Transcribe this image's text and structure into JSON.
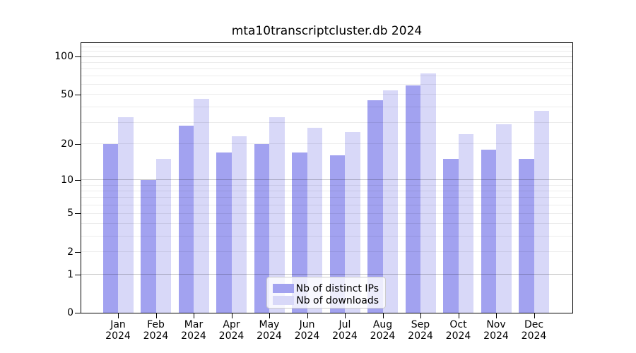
{
  "chart_data": {
    "type": "bar",
    "title": "mta10transcriptcluster.db 2024",
    "xlabel": "",
    "ylabel": "",
    "yscale": "log1p",
    "ylim": [
      0,
      128
    ],
    "y_ticks": [
      0,
      1,
      2,
      5,
      10,
      20,
      50,
      100
    ],
    "y_major_gridlines": [
      1,
      10,
      100
    ],
    "y_minor_gridlines": [
      2,
      3,
      4,
      5,
      6,
      7,
      8,
      9,
      20,
      30,
      40,
      50,
      60,
      70,
      80,
      90,
      110,
      120
    ],
    "categories": [
      "Jan",
      "Feb",
      "Mar",
      "Apr",
      "May",
      "Jun",
      "Jul",
      "Aug",
      "Sep",
      "Oct",
      "Nov",
      "Dec"
    ],
    "year_label": "2024",
    "series": [
      {
        "name": "Nb of distinct IPs",
        "color": "#a2a2f0",
        "values": [
          20,
          10,
          28,
          17,
          20,
          17,
          16,
          45,
          59,
          15,
          18,
          15
        ]
      },
      {
        "name": "Nb of downloads",
        "color": "#d8d8f8",
        "values": [
          33,
          15,
          46,
          23,
          33,
          27,
          25,
          54,
          74,
          24,
          29,
          37
        ]
      }
    ],
    "legend": {
      "position": "lower center inside"
    }
  }
}
